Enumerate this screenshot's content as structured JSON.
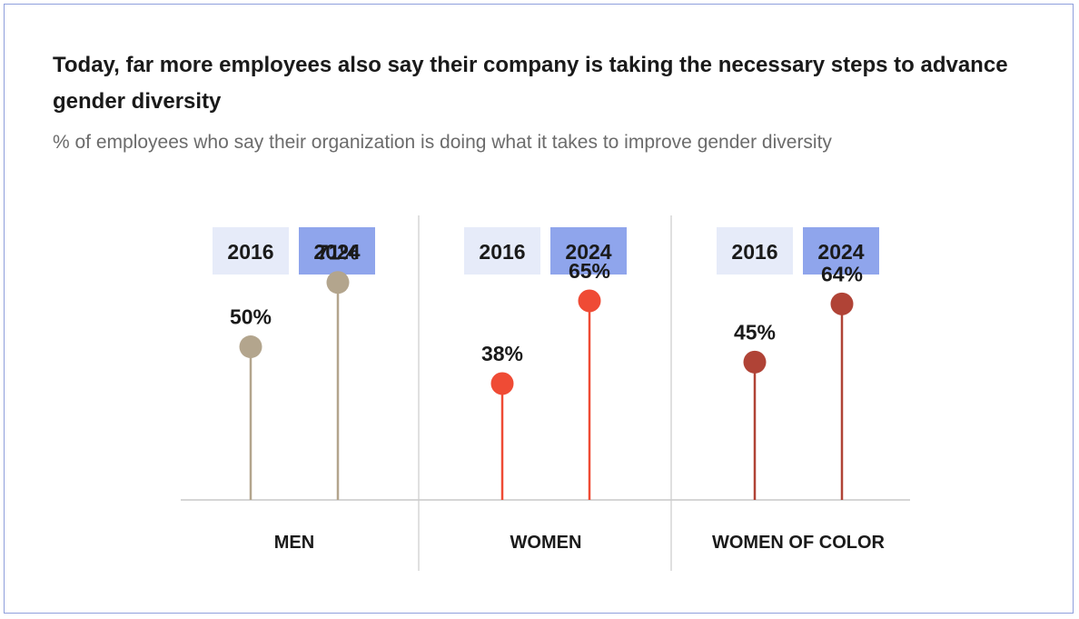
{
  "title": "Today, far more employees also say their company is taking the necessary steps to advance gender diversity",
  "subtitle": "% of employees who say their organization is doing what it takes to improve gender diversity",
  "legend": {
    "items": [
      {
        "label": "2016",
        "color": "#e6ebf9"
      },
      {
        "label": "2024",
        "color": "#8fa5ec"
      }
    ]
  },
  "chart_data": {
    "type": "lollipop",
    "categories": [
      "MEN",
      "WOMEN",
      "WOMEN OF COLOR"
    ],
    "series": [
      {
        "name": "2016",
        "values": [
          50,
          38,
          45
        ]
      },
      {
        "name": "2024",
        "values": [
          71,
          65,
          64
        ]
      }
    ],
    "value_suffix": "%",
    "category_colors": [
      "#b3a58d",
      "#ef4b35",
      "#b04336"
    ]
  }
}
